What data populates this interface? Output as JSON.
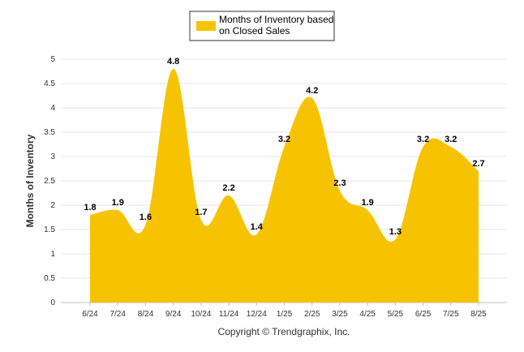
{
  "chart_data": {
    "type": "area",
    "categories": [
      "6/24",
      "7/24",
      "8/24",
      "9/24",
      "10/24",
      "11/24",
      "12/24",
      "1/25",
      "2/25",
      "3/25",
      "4/25",
      "5/25",
      "6/25",
      "7/25",
      "8/25"
    ],
    "series": [
      {
        "name": "Months of Inventory based on Closed Sales",
        "values": [
          1.8,
          1.9,
          1.6,
          4.8,
          1.7,
          2.2,
          1.4,
          3.2,
          4.2,
          2.3,
          1.9,
          1.3,
          3.2,
          3.2,
          2.7
        ],
        "color": "#F7C300"
      }
    ],
    "ylabel": "Months of Inventory",
    "xlabel": "",
    "ylim": [
      0,
      5
    ],
    "yticks": [
      "0",
      "0.5",
      "1",
      "1.5",
      "2",
      "2.5",
      "3",
      "3.5",
      "4",
      "4.5",
      "5"
    ],
    "grid": true,
    "legend_position": "top-center",
    "legend_lines": [
      "Months of Inventory based",
      "on Closed Sales"
    ]
  },
  "footer": "Copyright © Trendgraphix, Inc."
}
